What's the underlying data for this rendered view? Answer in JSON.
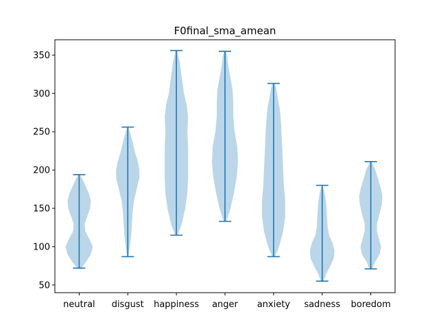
{
  "chart_data": {
    "type": "violin",
    "title": "F0final_sma_amean",
    "xlabel": "",
    "ylabel": "",
    "ylim": [
      40,
      370
    ],
    "yticks": [
      50,
      100,
      150,
      200,
      250,
      300,
      350
    ],
    "ytick_labels": [
      "50",
      "100",
      "150",
      "200",
      "250",
      "300",
      "350"
    ],
    "grid": false,
    "categories": [
      "neutral",
      "disgust",
      "happiness",
      "anger",
      "anxiety",
      "sadness",
      "boredom"
    ],
    "violins": [
      {
        "category": "neutral",
        "min": 72,
        "max": 194,
        "profile": [
          [
            72,
            3
          ],
          [
            80,
            10
          ],
          [
            90,
            17
          ],
          [
            100,
            20
          ],
          [
            110,
            15
          ],
          [
            120,
            9
          ],
          [
            130,
            8
          ],
          [
            140,
            12
          ],
          [
            150,
            16
          ],
          [
            160,
            17
          ],
          [
            170,
            14
          ],
          [
            180,
            9
          ],
          [
            188,
            5
          ],
          [
            194,
            1
          ]
        ]
      },
      {
        "category": "disgust",
        "min": 87,
        "max": 256,
        "profile": [
          [
            87,
            1
          ],
          [
            100,
            3
          ],
          [
            115,
            5
          ],
          [
            130,
            6
          ],
          [
            145,
            7
          ],
          [
            160,
            9
          ],
          [
            175,
            13
          ],
          [
            190,
            17
          ],
          [
            200,
            17
          ],
          [
            210,
            15
          ],
          [
            225,
            10
          ],
          [
            240,
            6
          ],
          [
            250,
            3
          ],
          [
            256,
            1
          ]
        ]
      },
      {
        "category": "happiness",
        "min": 115,
        "max": 356,
        "profile": [
          [
            115,
            2
          ],
          [
            130,
            8
          ],
          [
            150,
            13
          ],
          [
            170,
            16
          ],
          [
            190,
            17
          ],
          [
            210,
            17
          ],
          [
            230,
            17
          ],
          [
            250,
            16
          ],
          [
            270,
            17
          ],
          [
            285,
            15
          ],
          [
            300,
            11
          ],
          [
            320,
            8
          ],
          [
            340,
            5
          ],
          [
            356,
            1
          ]
        ]
      },
      {
        "category": "anger",
        "min": 133,
        "max": 355,
        "profile": [
          [
            133,
            2
          ],
          [
            150,
            8
          ],
          [
            170,
            13
          ],
          [
            190,
            17
          ],
          [
            210,
            19
          ],
          [
            230,
            18
          ],
          [
            250,
            14
          ],
          [
            270,
            12
          ],
          [
            290,
            12
          ],
          [
            305,
            11
          ],
          [
            320,
            8
          ],
          [
            335,
            5
          ],
          [
            350,
            3
          ],
          [
            355,
            1
          ]
        ]
      },
      {
        "category": "anxiety",
        "min": 87,
        "max": 313,
        "profile": [
          [
            87,
            2
          ],
          [
            100,
            8
          ],
          [
            120,
            14
          ],
          [
            140,
            17
          ],
          [
            160,
            17
          ],
          [
            180,
            15
          ],
          [
            200,
            14
          ],
          [
            220,
            13
          ],
          [
            240,
            12
          ],
          [
            260,
            11
          ],
          [
            280,
            9
          ],
          [
            295,
            6
          ],
          [
            310,
            3
          ],
          [
            313,
            1
          ]
        ]
      },
      {
        "category": "sadness",
        "min": 55,
        "max": 180,
        "profile": [
          [
            55,
            2
          ],
          [
            65,
            6
          ],
          [
            75,
            12
          ],
          [
            85,
            17
          ],
          [
            95,
            18
          ],
          [
            105,
            15
          ],
          [
            115,
            10
          ],
          [
            125,
            8
          ],
          [
            140,
            7
          ],
          [
            155,
            6
          ],
          [
            168,
            4
          ],
          [
            180,
            1
          ]
        ]
      },
      {
        "category": "boredom",
        "min": 71,
        "max": 211,
        "profile": [
          [
            71,
            2
          ],
          [
            80,
            6
          ],
          [
            90,
            13
          ],
          [
            100,
            15
          ],
          [
            110,
            12
          ],
          [
            120,
            9
          ],
          [
            130,
            9
          ],
          [
            140,
            12
          ],
          [
            155,
            16
          ],
          [
            165,
            17
          ],
          [
            175,
            15
          ],
          [
            190,
            10
          ],
          [
            202,
            6
          ],
          [
            211,
            1
          ]
        ]
      }
    ],
    "colors": {
      "body": "#1f77b4",
      "body_opacity": 0.3,
      "line": "#1f77b4"
    }
  }
}
